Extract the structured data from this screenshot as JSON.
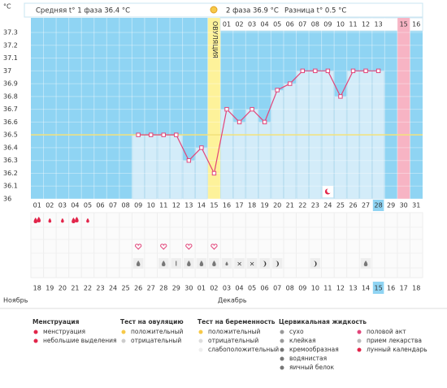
{
  "chart_data": {
    "type": "line",
    "y_label": "°C",
    "header": {
      "phase1": "Средняя t° 1 фаза 36.4 °C",
      "phase2": "2 фаза 36.9 °C",
      "diff": "Разница t° 0.5 °C"
    },
    "ovulation_label": "ОВУЛЯЦИЯ",
    "categories": [
      "01",
      "02",
      "03",
      "04",
      "05",
      "06",
      "07",
      "08",
      "09",
      "10",
      "11",
      "12",
      "13",
      "14",
      "15",
      "16",
      "17",
      "18",
      "19",
      "20",
      "21",
      "22",
      "23",
      "24",
      "25",
      "26",
      "27",
      "28",
      "29",
      "30",
      "31"
    ],
    "phase2_days": [
      null,
      null,
      null,
      null,
      null,
      null,
      null,
      null,
      null,
      null,
      null,
      null,
      null,
      null,
      null,
      "01",
      "02",
      "03",
      "04",
      "05",
      "06",
      "07",
      "08",
      "09",
      "10",
      "11",
      "12",
      "13",
      null,
      "15",
      "16"
    ],
    "values": [
      null,
      null,
      null,
      null,
      null,
      null,
      null,
      null,
      36.5,
      36.5,
      36.5,
      36.5,
      36.3,
      36.4,
      36.2,
      36.7,
      36.6,
      36.7,
      36.6,
      36.85,
      36.9,
      37.0,
      37.0,
      37.0,
      36.8,
      37.0,
      37.0,
      37.0,
      null,
      null,
      null
    ],
    "color": "#e2457a",
    "coverline": 36.5,
    "ylim": [
      36,
      37.3
    ],
    "yticks": [
      36,
      36.1,
      36.2,
      36.3,
      36.4,
      36.5,
      36.6,
      36.7,
      36.8,
      36.9,
      37,
      37.1,
      37.2,
      37.3
    ],
    "grid": true,
    "dates": [
      "18",
      "19",
      "20",
      "21",
      "22",
      "23",
      "24",
      "25",
      "26",
      "27",
      "28",
      "29",
      "30",
      "01",
      "02",
      "03",
      "04",
      "05",
      "06",
      "07",
      "08",
      "09",
      "10",
      "11",
      "12",
      "13",
      "14",
      "15",
      "16",
      "17",
      "18"
    ],
    "dates_red": [
      false,
      true,
      true,
      false,
      false,
      false,
      false,
      false,
      true,
      true,
      false,
      false,
      false,
      false,
      false,
      true,
      true,
      false,
      false,
      false,
      false,
      false,
      true,
      true,
      false,
      false,
      false,
      false,
      false,
      true,
      true
    ],
    "months": [
      "Ноябрь",
      "Декабрь"
    ],
    "legend": [
      {
        "title": "Менструация",
        "items": [
          "менструация",
          "небольшие выделения"
        ]
      },
      {
        "title": "Тест на овуляцию",
        "items": [
          "положительный",
          "отрицательный"
        ]
      },
      {
        "title": "Тест на беременность",
        "items": [
          "положительный",
          "отрицательный",
          "слабоположительный"
        ]
      },
      {
        "title": "Цервикальная жидкость",
        "items": [
          "сухо",
          "клейкая",
          "кремообразная",
          "водянистая",
          "яичный белок"
        ]
      },
      {
        "items": [
          "половой акт",
          "прием лекарства",
          "лунный календарь"
        ]
      }
    ]
  }
}
